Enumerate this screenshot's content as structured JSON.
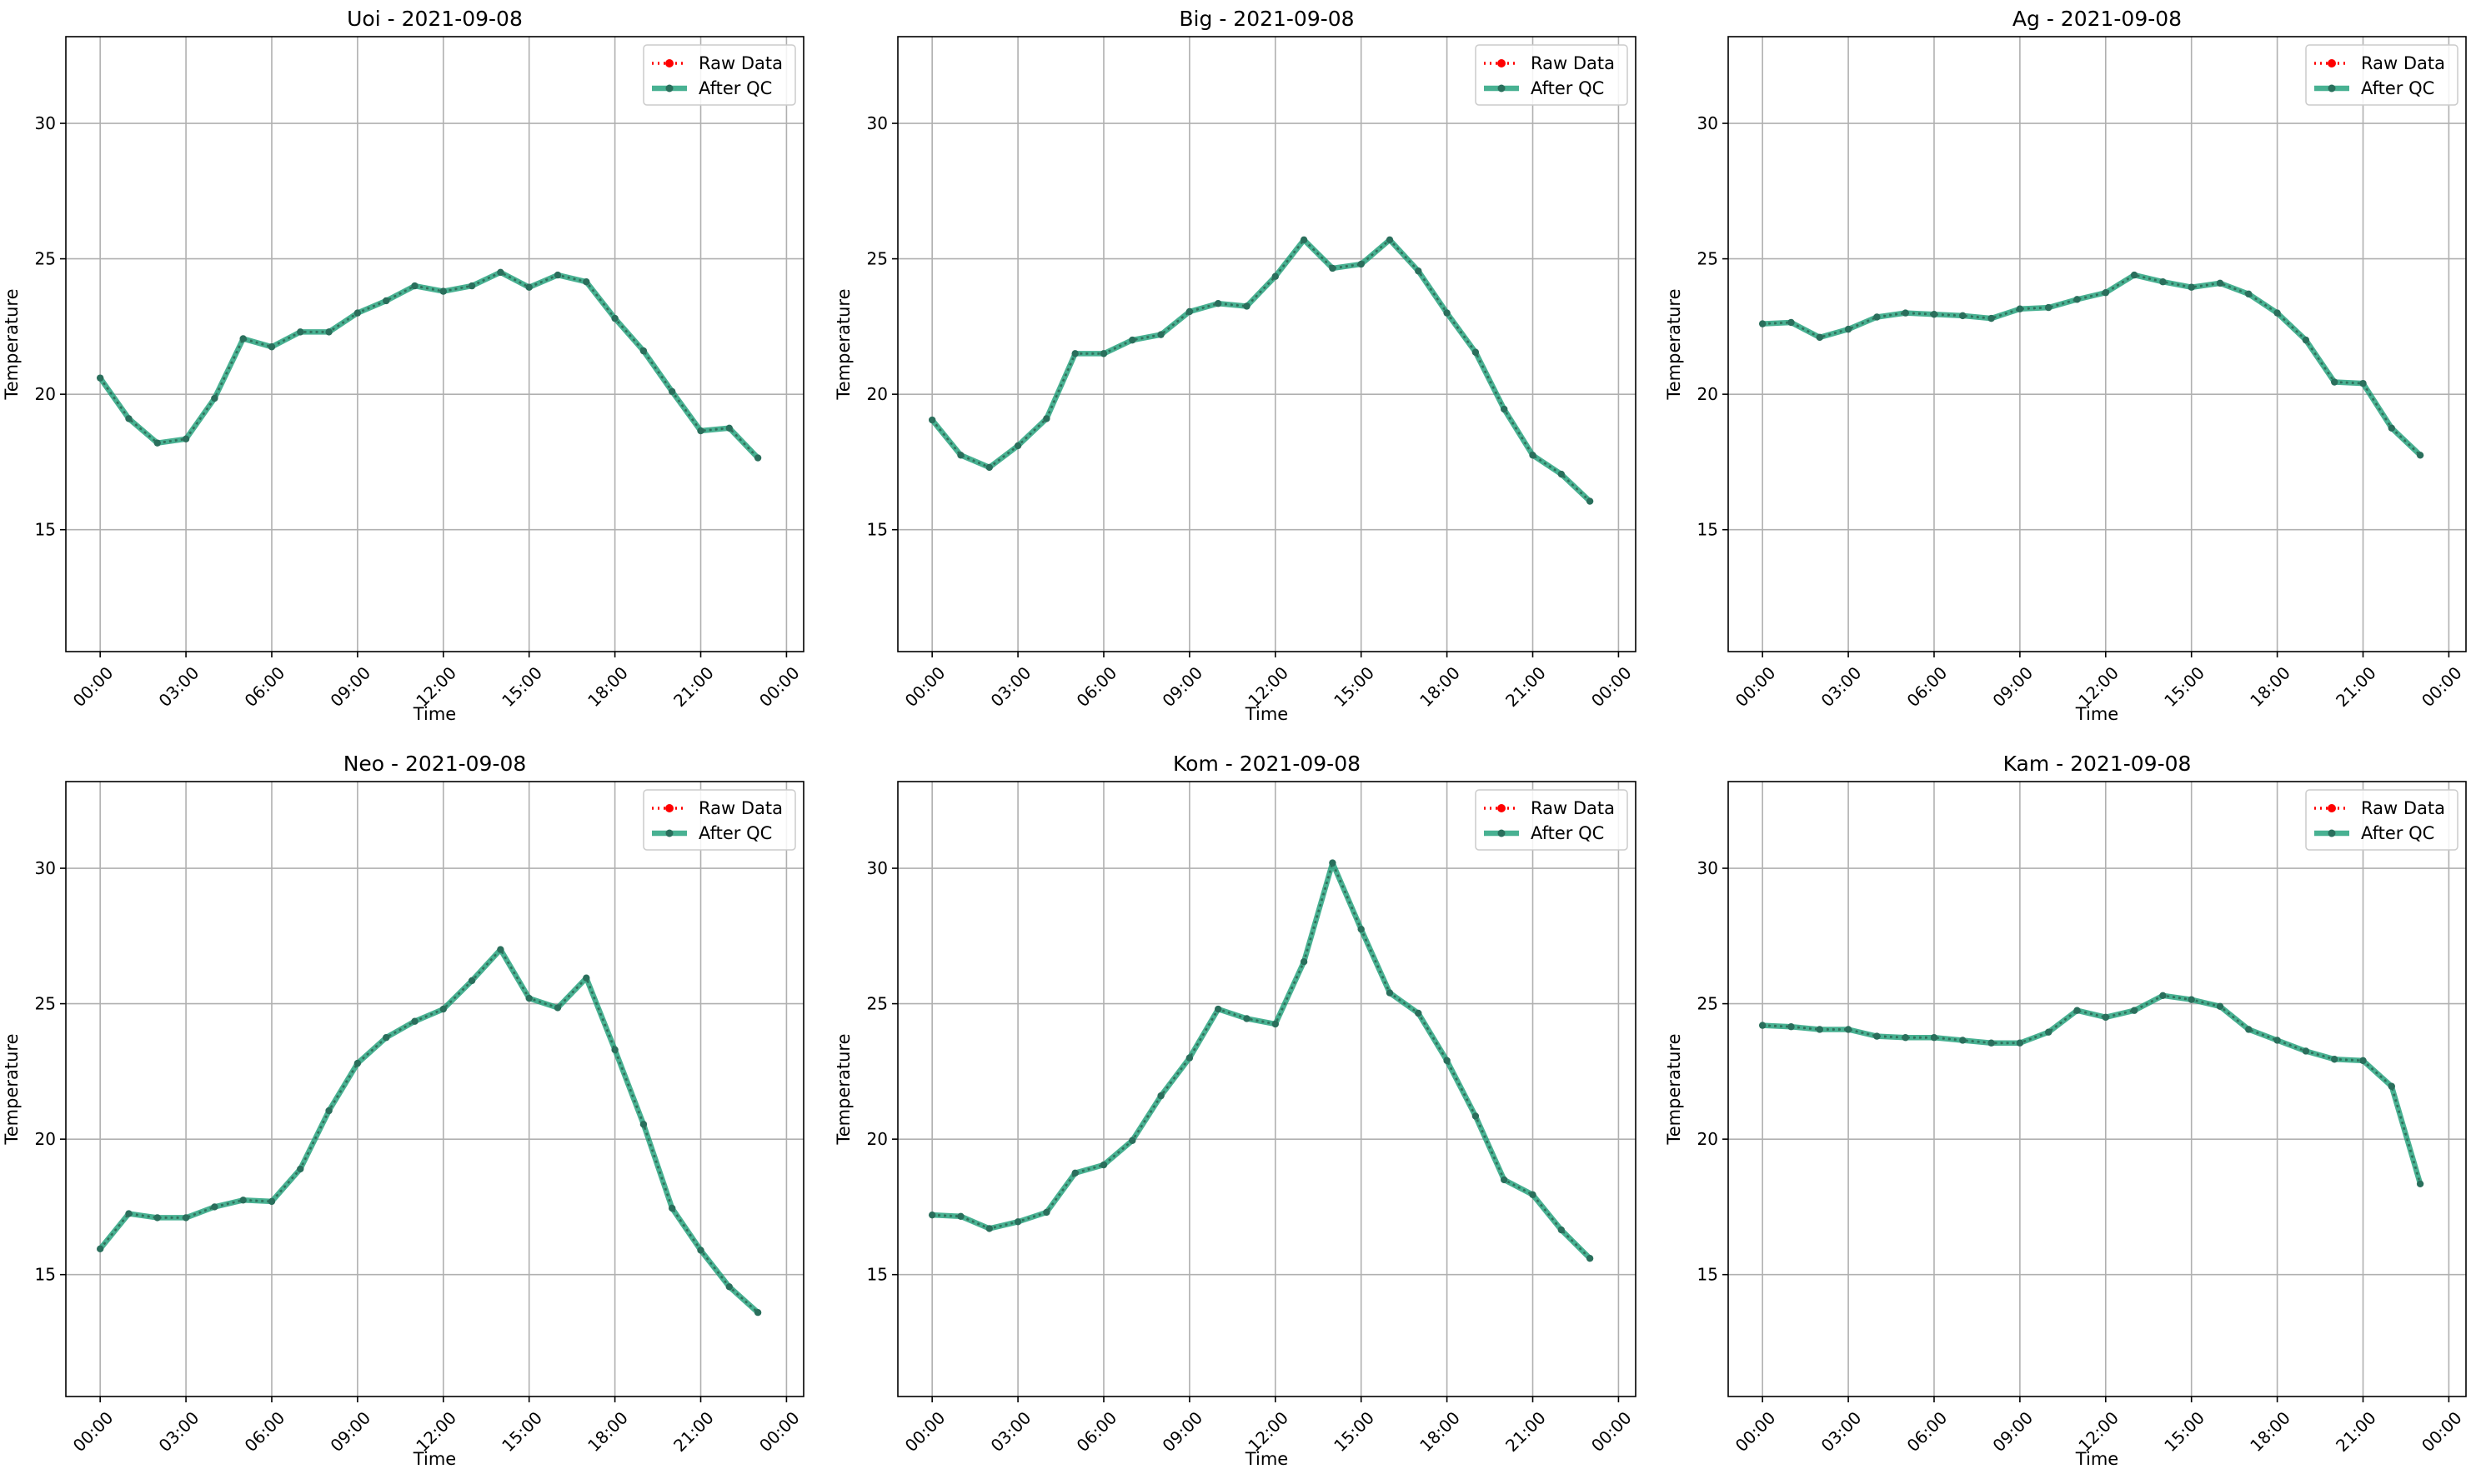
{
  "figure": {
    "raw_color": "#ff0000",
    "qc_color": "#1a9e77",
    "marker_color": "#2a6f5c"
  },
  "chart_data": [
    {
      "type": "line",
      "title": "Uoi - 2021-09-08",
      "xlabel": "Time",
      "ylabel": "Temperature",
      "x": [
        "00:00",
        "01:00",
        "02:00",
        "03:00",
        "04:00",
        "05:00",
        "06:00",
        "07:00",
        "08:00",
        "09:00",
        "10:00",
        "11:00",
        "12:00",
        "13:00",
        "14:00",
        "15:00",
        "16:00",
        "17:00",
        "18:00",
        "19:00",
        "20:00",
        "21:00",
        "22:00",
        "23:00"
      ],
      "xticks": [
        "00:00",
        "03:00",
        "06:00",
        "09:00",
        "12:00",
        "15:00",
        "18:00",
        "21:00",
        "00:00"
      ],
      "yticks": [
        15,
        20,
        25,
        30
      ],
      "ylim": [
        10.5,
        33.2
      ],
      "grid": true,
      "legend": "top-right",
      "series": [
        {
          "name": "Raw Data",
          "values": [
            20.6,
            19.1,
            18.2,
            18.35,
            19.85,
            22.05,
            21.75,
            22.3,
            22.3,
            23.0,
            23.45,
            24.0,
            23.8,
            24.0,
            24.5,
            23.95,
            24.4,
            24.15,
            22.8,
            21.6,
            20.1,
            18.65,
            18.75,
            17.65
          ]
        },
        {
          "name": "After QC",
          "values": [
            20.6,
            19.1,
            18.2,
            18.35,
            19.85,
            22.05,
            21.75,
            22.3,
            22.3,
            23.0,
            23.45,
            24.0,
            23.8,
            24.0,
            24.5,
            23.95,
            24.4,
            24.15,
            22.8,
            21.6,
            20.1,
            18.65,
            18.75,
            17.65
          ]
        }
      ]
    },
    {
      "type": "line",
      "title": "Big - 2021-09-08",
      "xlabel": "Time",
      "ylabel": "Temperature",
      "x": [
        "00:00",
        "01:00",
        "02:00",
        "03:00",
        "04:00",
        "05:00",
        "06:00",
        "07:00",
        "08:00",
        "09:00",
        "10:00",
        "11:00",
        "12:00",
        "13:00",
        "14:00",
        "15:00",
        "16:00",
        "17:00",
        "18:00",
        "19:00",
        "20:00",
        "21:00",
        "22:00",
        "23:00"
      ],
      "xticks": [
        "00:00",
        "03:00",
        "06:00",
        "09:00",
        "12:00",
        "15:00",
        "18:00",
        "21:00",
        "00:00"
      ],
      "yticks": [
        15,
        20,
        25,
        30
      ],
      "ylim": [
        10.5,
        33.2
      ],
      "grid": true,
      "legend": "top-right",
      "series": [
        {
          "name": "Raw Data",
          "values": [
            19.05,
            17.75,
            17.3,
            18.1,
            19.1,
            21.5,
            21.5,
            22.0,
            22.2,
            23.05,
            23.35,
            23.25,
            24.35,
            25.7,
            24.65,
            24.8,
            25.7,
            24.55,
            23.0,
            21.55,
            19.45,
            17.75,
            17.05,
            16.05
          ]
        },
        {
          "name": "After QC",
          "values": [
            19.05,
            17.75,
            17.3,
            18.1,
            19.1,
            21.5,
            21.5,
            22.0,
            22.2,
            23.05,
            23.35,
            23.25,
            24.35,
            25.7,
            24.65,
            24.8,
            25.7,
            24.55,
            23.0,
            21.55,
            19.45,
            17.75,
            17.05,
            16.05
          ]
        }
      ]
    },
    {
      "type": "line",
      "title": "Ag - 2021-09-08",
      "xlabel": "Time",
      "ylabel": "Temperature",
      "x": [
        "00:00",
        "01:00",
        "02:00",
        "03:00",
        "04:00",
        "05:00",
        "06:00",
        "07:00",
        "08:00",
        "09:00",
        "10:00",
        "11:00",
        "12:00",
        "13:00",
        "14:00",
        "15:00",
        "16:00",
        "17:00",
        "18:00",
        "19:00",
        "20:00",
        "21:00",
        "22:00",
        "23:00"
      ],
      "xticks": [
        "00:00",
        "03:00",
        "06:00",
        "09:00",
        "12:00",
        "15:00",
        "18:00",
        "21:00",
        "00:00"
      ],
      "yticks": [
        15,
        20,
        25,
        30
      ],
      "ylim": [
        10.5,
        33.2
      ],
      "grid": true,
      "legend": "top-right",
      "series": [
        {
          "name": "Raw Data",
          "values": [
            22.6,
            22.65,
            22.1,
            22.4,
            22.85,
            23.0,
            22.95,
            22.9,
            22.8,
            23.15,
            23.2,
            23.5,
            23.75,
            24.4,
            24.15,
            23.95,
            24.1,
            23.7,
            23.0,
            22.0,
            20.45,
            20.4,
            18.75,
            17.75
          ]
        },
        {
          "name": "After QC",
          "values": [
            22.6,
            22.65,
            22.1,
            22.4,
            22.85,
            23.0,
            22.95,
            22.9,
            22.8,
            23.15,
            23.2,
            23.5,
            23.75,
            24.4,
            24.15,
            23.95,
            24.1,
            23.7,
            23.0,
            22.0,
            20.45,
            20.4,
            18.75,
            17.75
          ]
        }
      ]
    },
    {
      "type": "line",
      "title": "Neo - 2021-09-08",
      "xlabel": "Time",
      "ylabel": "Temperature",
      "x": [
        "00:00",
        "01:00",
        "02:00",
        "03:00",
        "04:00",
        "05:00",
        "06:00",
        "07:00",
        "08:00",
        "09:00",
        "10:00",
        "11:00",
        "12:00",
        "13:00",
        "14:00",
        "15:00",
        "16:00",
        "17:00",
        "18:00",
        "19:00",
        "20:00",
        "21:00",
        "22:00",
        "23:00"
      ],
      "xticks": [
        "00:00",
        "03:00",
        "06:00",
        "09:00",
        "12:00",
        "15:00",
        "18:00",
        "21:00",
        "00:00"
      ],
      "yticks": [
        15,
        20,
        25,
        30
      ],
      "ylim": [
        10.5,
        33.2
      ],
      "grid": true,
      "legend": "top-right",
      "series": [
        {
          "name": "Raw Data",
          "values": [
            15.95,
            17.25,
            17.1,
            17.1,
            17.5,
            17.75,
            17.7,
            18.9,
            21.05,
            22.8,
            23.75,
            24.35,
            24.8,
            25.85,
            27.0,
            25.2,
            24.85,
            25.95,
            23.3,
            20.55,
            17.45,
            15.9,
            14.55,
            13.6
          ]
        },
        {
          "name": "After QC",
          "values": [
            15.95,
            17.25,
            17.1,
            17.1,
            17.5,
            17.75,
            17.7,
            18.9,
            21.05,
            22.8,
            23.75,
            24.35,
            24.8,
            25.85,
            27.0,
            25.2,
            24.85,
            25.95,
            23.3,
            20.55,
            17.45,
            15.9,
            14.55,
            13.6
          ]
        }
      ]
    },
    {
      "type": "line",
      "title": "Kom - 2021-09-08",
      "xlabel": "Time",
      "ylabel": "Temperature",
      "x": [
        "00:00",
        "01:00",
        "02:00",
        "03:00",
        "04:00",
        "05:00",
        "06:00",
        "07:00",
        "08:00",
        "09:00",
        "10:00",
        "11:00",
        "12:00",
        "13:00",
        "14:00",
        "15:00",
        "16:00",
        "17:00",
        "18:00",
        "19:00",
        "20:00",
        "21:00",
        "22:00",
        "23:00"
      ],
      "xticks": [
        "00:00",
        "03:00",
        "06:00",
        "09:00",
        "12:00",
        "15:00",
        "18:00",
        "21:00",
        "00:00"
      ],
      "yticks": [
        15,
        20,
        25,
        30
      ],
      "ylim": [
        10.5,
        33.2
      ],
      "grid": true,
      "legend": "top-right",
      "series": [
        {
          "name": "Raw Data",
          "values": [
            17.2,
            17.15,
            16.7,
            16.95,
            17.3,
            18.75,
            19.05,
            19.95,
            21.6,
            23.0,
            24.8,
            24.45,
            24.25,
            26.55,
            30.2,
            27.75,
            25.4,
            24.65,
            22.9,
            20.85,
            18.5,
            17.95,
            16.65,
            15.6
          ]
        },
        {
          "name": "After QC",
          "values": [
            17.2,
            17.15,
            16.7,
            16.95,
            17.3,
            18.75,
            19.05,
            19.95,
            21.6,
            23.0,
            24.8,
            24.45,
            24.25,
            26.55,
            30.2,
            27.75,
            25.4,
            24.65,
            22.9,
            20.85,
            18.5,
            17.95,
            16.65,
            15.6
          ]
        }
      ]
    },
    {
      "type": "line",
      "title": "Kam - 2021-09-08",
      "xlabel": "Time",
      "ylabel": "Temperature",
      "x": [
        "00:00",
        "01:00",
        "02:00",
        "03:00",
        "04:00",
        "05:00",
        "06:00",
        "07:00",
        "08:00",
        "09:00",
        "10:00",
        "11:00",
        "12:00",
        "13:00",
        "14:00",
        "15:00",
        "16:00",
        "17:00",
        "18:00",
        "19:00",
        "20:00",
        "21:00",
        "22:00",
        "23:00"
      ],
      "xticks": [
        "00:00",
        "03:00",
        "06:00",
        "09:00",
        "12:00",
        "15:00",
        "18:00",
        "21:00",
        "00:00"
      ],
      "yticks": [
        15,
        20,
        25,
        30
      ],
      "ylim": [
        10.5,
        33.2
      ],
      "grid": true,
      "legend": "top-right",
      "series": [
        {
          "name": "Raw Data",
          "values": [
            24.2,
            24.15,
            24.05,
            24.05,
            23.8,
            23.75,
            23.75,
            23.65,
            23.55,
            23.55,
            23.95,
            24.75,
            24.5,
            24.75,
            25.3,
            25.15,
            24.9,
            24.05,
            23.65,
            23.25,
            22.95,
            22.9,
            21.95,
            18.35
          ]
        },
        {
          "name": "After QC",
          "values": [
            24.2,
            24.15,
            24.05,
            24.05,
            23.8,
            23.75,
            23.75,
            23.65,
            23.55,
            23.55,
            23.95,
            24.75,
            24.5,
            24.75,
            25.3,
            25.15,
            24.9,
            24.05,
            23.65,
            23.25,
            22.95,
            22.9,
            21.95,
            18.35
          ]
        }
      ]
    }
  ]
}
